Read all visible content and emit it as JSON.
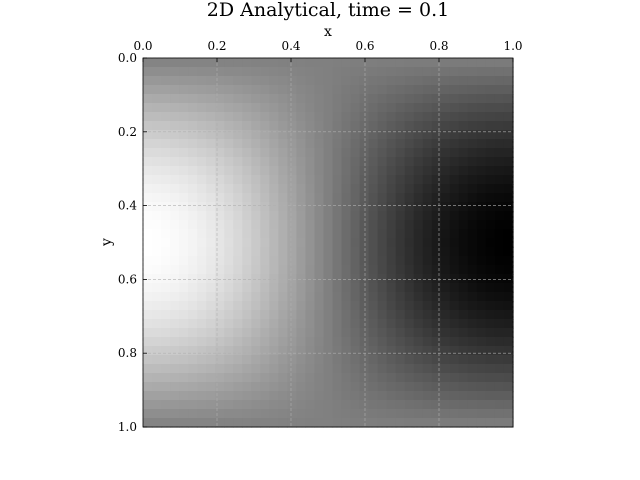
{
  "chart_data": {
    "type": "heatmap",
    "title": "2D Analytical, time = 0.1",
    "xlabel": "x",
    "ylabel": "y",
    "xlim": [
      0.0,
      1.0
    ],
    "ylim": [
      0.0,
      1.0
    ],
    "x_axis_position": "top",
    "y_axis_inverted": true,
    "x_ticks": [
      "0.0",
      "0.2",
      "0.4",
      "0.6",
      "0.8",
      "1.0"
    ],
    "y_ticks": [
      "0.0",
      "0.2",
      "0.4",
      "0.6",
      "0.8",
      "1.0"
    ],
    "colormap": "gray",
    "grid": true,
    "nx": 41,
    "ny": 41,
    "field": "0.5 + 0.5 * cos(pi * x) * sin(pi * y)"
  }
}
